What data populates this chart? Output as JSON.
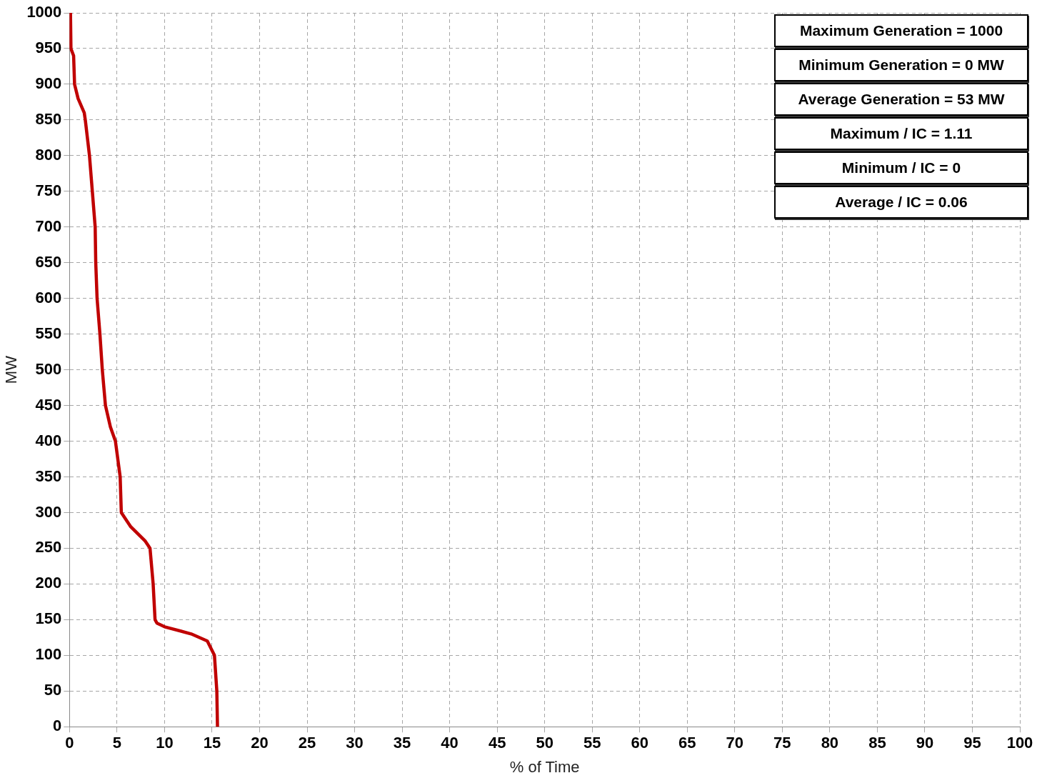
{
  "chart_data": {
    "type": "line",
    "xlabel": "% of Time",
    "ylabel": "MW",
    "xlim": [
      0,
      100
    ],
    "xticks": [
      0,
      5,
      10,
      15,
      20,
      25,
      30,
      35,
      40,
      45,
      50,
      55,
      60,
      65,
      70,
      75,
      80,
      85,
      90,
      95,
      100
    ],
    "ylim": [
      0,
      1000
    ],
    "yticks": [
      0,
      50,
      100,
      150,
      200,
      250,
      300,
      350,
      400,
      450,
      500,
      550,
      600,
      650,
      700,
      750,
      800,
      850,
      900,
      950,
      1000
    ],
    "grid": true,
    "legend": false,
    "marker": "none",
    "line_style": "solid",
    "series": [
      {
        "color": "#c00000",
        "x": [
          0.1,
          0.15,
          0.43,
          0.53,
          0.9,
          1.55,
          1.66,
          2.1,
          2.4,
          2.7,
          2.76,
          2.9,
          3.2,
          3.45,
          3.78,
          4.3,
          4.83,
          5.33,
          5.45,
          6.45,
          7.97,
          8.47,
          8.8,
          9.0,
          9.2,
          10.0,
          12.8,
          14.5,
          15.25,
          15.5,
          15.57
        ],
        "values": [
          1000,
          950,
          940,
          900,
          880,
          860,
          850,
          800,
          750,
          700,
          650,
          600,
          550,
          500,
          450,
          420,
          400,
          350,
          300,
          280,
          260,
          250,
          200,
          150,
          145,
          140,
          130,
          120,
          100,
          50,
          0
        ]
      }
    ],
    "annotations": [
      "Maximum Generation = 1000",
      "Minimum Generation = 0 MW",
      "Average Generation = 53 MW",
      "Maximum / IC = 1.11",
      "Minimum / IC = 0",
      "Average / IC = 0.06"
    ]
  }
}
